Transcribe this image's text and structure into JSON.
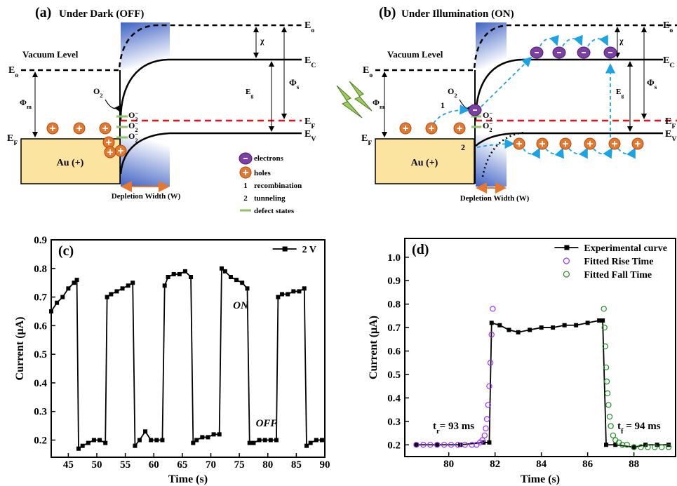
{
  "diagrams": [
    {
      "texts": [
        "(a)",
        "Under Dark (OFF)",
        "Vacuum Level",
        {
          "text": "E",
          "sub": "o"
        },
        {
          "text": "E",
          "sub": "o"
        },
        {
          "text": "E",
          "sub": "C"
        },
        {
          "text": "E",
          "sub": "F"
        },
        {
          "text": "E",
          "sub": "V"
        },
        {
          "text": "E",
          "sub": "F"
        },
        {
          "text": "Φ",
          "sub": "m"
        },
        "χ",
        {
          "text": "Φ",
          "sub": "s"
        },
        {
          "text": "E",
          "sub": "g"
        },
        {
          "text": "O",
          "sub": "2"
        },
        {
          "text": "O",
          "sub": "2",
          "sup": "−"
        },
        {
          "text": "O",
          "sub": "2",
          "sup": "−"
        },
        {
          "text": "O",
          "sub": "2",
          "sup": "−"
        },
        "Au (+)",
        "Depletion Width (W)",
        "electrons",
        "holes",
        "1",
        "recombination",
        "2",
        "tunneling",
        "defect states"
      ]
    },
    {
      "texts": [
        "(b)",
        "Under Illumination (ON)",
        "Vacuum Level",
        {
          "text": "E",
          "sub": "o"
        },
        {
          "text": "E",
          "sub": "o"
        },
        {
          "text": "E",
          "sub": "C"
        },
        {
          "text": "E",
          "sub": "F"
        },
        {
          "text": "E",
          "sub": "V"
        },
        {
          "text": "E",
          "sub": "F"
        },
        {
          "text": "Φ",
          "sub": "m"
        },
        "χ",
        {
          "text": "Φ",
          "sub": "s"
        },
        {
          "text": "E",
          "sub": "g"
        },
        {
          "text": "O",
          "sub": "2"
        },
        {
          "text": "O",
          "sub": "2",
          "sup": "−"
        },
        {
          "text": "O",
          "sub": "2",
          "sup": "−"
        },
        "1",
        "2",
        "Au (+)",
        "Depletion Width (W)"
      ]
    }
  ],
  "chart_data": [
    {
      "type": "line",
      "label": "(c)",
      "xlabel": "Time (s)",
      "ylabel": "Current (μA)",
      "x": [
        42,
        43,
        44,
        45,
        46,
        46.5,
        46.8,
        47.5,
        48.5,
        49.5,
        50.5,
        51.5,
        51.8,
        52.5,
        53.5,
        54.5,
        55.5,
        56.3,
        56.7,
        57.5,
        58.5,
        59.5,
        60.5,
        61.5,
        61.9,
        62.5,
        63.5,
        64.5,
        65.5,
        66.5,
        66.9,
        67.5,
        68.5,
        69.5,
        70.5,
        71.5,
        71.9,
        72.5,
        73.5,
        74.5,
        75.5,
        76.4,
        76.8,
        77.5,
        78.5,
        79.5,
        80.5,
        81.5,
        81.8,
        82.5,
        83.5,
        84.5,
        85.5,
        86.4,
        86.8,
        87.5,
        88.5,
        89.5
      ],
      "series": [
        {
          "name": "2 V",
          "color": "#000000",
          "marker": "square",
          "line": true,
          "values": [
            0.65,
            0.68,
            0.7,
            0.73,
            0.75,
            0.76,
            0.17,
            0.18,
            0.19,
            0.2,
            0.2,
            0.19,
            0.7,
            0.71,
            0.72,
            0.73,
            0.74,
            0.75,
            0.18,
            0.2,
            0.23,
            0.2,
            0.2,
            0.2,
            0.74,
            0.77,
            0.78,
            0.78,
            0.79,
            0.77,
            0.19,
            0.2,
            0.21,
            0.21,
            0.22,
            0.22,
            0.8,
            0.79,
            0.77,
            0.76,
            0.75,
            0.73,
            0.19,
            0.19,
            0.2,
            0.2,
            0.2,
            0.2,
            0.7,
            0.71,
            0.71,
            0.72,
            0.72,
            0.73,
            0.18,
            0.19,
            0.2,
            0.2
          ]
        }
      ],
      "xlim": [
        42,
        90
      ],
      "ylim": [
        0.14,
        0.9
      ],
      "xticks": [
        45,
        50,
        55,
        60,
        65,
        70,
        75,
        80,
        85,
        90
      ],
      "yticks": [
        0.2,
        0.3,
        0.4,
        0.5,
        0.6,
        0.7,
        0.8,
        0.9
      ],
      "legend": "upper right",
      "annotations": [
        {
          "text": "ON",
          "color": "#ff0000"
        },
        {
          "text": "OFF",
          "color": "#000000"
        }
      ]
    },
    {
      "type": "line",
      "label": "(d)",
      "xlabel": "Time (s)",
      "ylabel": "Current (μA)",
      "series": [
        {
          "name": "Experimental curve",
          "color": "#000000",
          "marker": "square",
          "line": true,
          "x": [
            78.6,
            79.5,
            80.5,
            81.5,
            81.75,
            81.85,
            82.2,
            82.6,
            83.0,
            83.5,
            84.0,
            84.5,
            85.0,
            85.5,
            86.0,
            86.5,
            86.65,
            86.8,
            87.2,
            88.0,
            88.5,
            89.0,
            89.5
          ],
          "values": [
            0.2,
            0.2,
            0.2,
            0.21,
            0.21,
            0.72,
            0.71,
            0.69,
            0.68,
            0.69,
            0.7,
            0.7,
            0.71,
            0.71,
            0.72,
            0.73,
            0.73,
            0.2,
            0.2,
            0.19,
            0.2,
            0.2,
            0.2
          ]
        },
        {
          "name": "Fitted Rise Time",
          "color": "#9b30ff",
          "marker": "circle-open",
          "line": false,
          "x": [
            78.6,
            78.9,
            79.2,
            79.5,
            79.8,
            80.1,
            80.4,
            80.7,
            81.0,
            81.2,
            81.35,
            81.45,
            81.55,
            81.6,
            81.65,
            81.7,
            81.75,
            81.8,
            81.85,
            81.9
          ],
          "values": [
            0.2,
            0.2,
            0.2,
            0.2,
            0.2,
            0.2,
            0.2,
            0.2,
            0.2,
            0.2,
            0.21,
            0.22,
            0.24,
            0.27,
            0.31,
            0.37,
            0.45,
            0.55,
            0.67,
            0.78
          ]
        },
        {
          "name": "Fitted Fall Time",
          "color": "#1e8c1e",
          "marker": "circle-open",
          "line": false,
          "x": [
            86.7,
            86.73,
            86.76,
            86.8,
            86.83,
            86.86,
            86.9,
            86.95,
            87.0,
            87.1,
            87.2,
            87.35,
            87.5,
            87.7,
            88.0,
            88.3,
            88.6,
            88.9,
            89.2,
            89.5
          ],
          "values": [
            0.78,
            0.7,
            0.62,
            0.53,
            0.47,
            0.42,
            0.37,
            0.32,
            0.28,
            0.24,
            0.22,
            0.21,
            0.2,
            0.2,
            0.19,
            0.19,
            0.19,
            0.19,
            0.19,
            0.19
          ]
        }
      ],
      "xlim": [
        78.1,
        89.8
      ],
      "ylim": [
        0.15,
        1.08
      ],
      "xticks": [
        80,
        82,
        84,
        86,
        88
      ],
      "yticks": [
        0.2,
        0.3,
        0.4,
        0.5,
        0.6,
        0.7,
        0.8,
        0.9,
        {
          "value": 1,
          "label": "1.0"
        }
      ],
      "legend": "upper right",
      "annotations": [
        {
          "text": "t",
          "sub": "r",
          "after": "= 93 ms",
          "color": "#000000"
        },
        {
          "text": "t",
          "sub": "f",
          "after": " = 94 ms",
          "color": "#000000"
        }
      ]
    }
  ]
}
